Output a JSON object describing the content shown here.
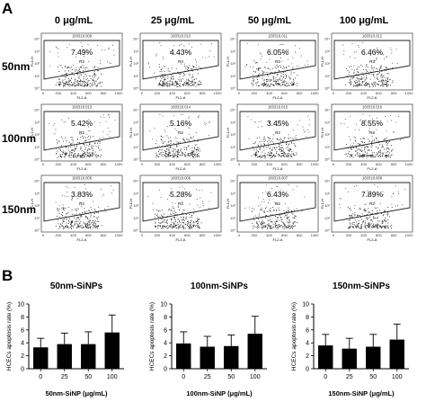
{
  "panel_a": {
    "label": "A",
    "col_headers": [
      "0 μg/mL",
      "25 μg/mL",
      "50 μg/mL",
      "100 μg/mL"
    ],
    "row_headers": [
      "50nm",
      "100nm",
      "150nm"
    ],
    "y_axis_label": "FL1-H",
    "x_axis_label": "FL2-A",
    "x_ticks": [
      "0",
      "200",
      "400",
      "600",
      "800",
      "1000"
    ],
    "y_ticks": [
      "10⁰",
      "10¹",
      "10²",
      "10³",
      "10⁴"
    ],
    "plots": [
      [
        {
          "sample_id": "160318.009",
          "percent": "7.49%",
          "gate": "R3"
        },
        {
          "sample_id": "160318.010",
          "percent": "4.43%",
          "gate": "R3"
        },
        {
          "sample_id": "160318.011",
          "percent": "6.05%",
          "gate": "R3"
        },
        {
          "sample_id": "160318.012",
          "percent": "6.46%",
          "gate": "R3"
        }
      ],
      [
        {
          "sample_id": "160318.013",
          "percent": "5.42%",
          "gate": "R2"
        },
        {
          "sample_id": "160318.014",
          "percent": "5.16%",
          "gate": "R2"
        },
        {
          "sample_id": "160318.015",
          "percent": "3.45%",
          "gate": "R2"
        },
        {
          "sample_id": "160318.016",
          "percent": "8.55%",
          "gate": "R4"
        }
      ],
      [
        {
          "sample_id": "160318.005",
          "percent": "3.83%",
          "gate": "R2"
        },
        {
          "sample_id": "160318.006",
          "percent": "5.28%",
          "gate": "R2"
        },
        {
          "sample_id": "160318.007",
          "percent": "6.43%",
          "gate": "R2"
        },
        {
          "sample_id": "160318.008",
          "percent": "7.89%",
          "gate": "R2"
        }
      ]
    ]
  },
  "panel_b": {
    "label": "B",
    "ylabel": "HCECs apoptosis rate (%)"
  },
  "chart_data": [
    {
      "type": "bar",
      "title": "50nm-SiNPs",
      "xlabel": "50nm-SiNP (μg/mL)",
      "ylabel": "HCECs apoptosis rate (%)",
      "categories": [
        "0",
        "25",
        "50",
        "100"
      ],
      "values": [
        3.3,
        3.8,
        3.8,
        5.6
      ],
      "errors": [
        1.4,
        1.7,
        1.9,
        2.7
      ],
      "ylim": [
        0,
        10
      ],
      "yticks": [
        0,
        2,
        4,
        6,
        8,
        10
      ]
    },
    {
      "type": "bar",
      "title": "100nm-SiNPs",
      "xlabel": "100nm-SiNP (μg/mL)",
      "ylabel": "HCECs apoptosis rate (%)",
      "categories": [
        "0",
        "25",
        "50",
        "100"
      ],
      "values": [
        3.9,
        3.4,
        3.5,
        5.4
      ],
      "errors": [
        1.8,
        1.6,
        1.7,
        2.7
      ],
      "ylim": [
        0,
        10
      ],
      "yticks": [
        0,
        2,
        4,
        6,
        8,
        10
      ]
    },
    {
      "type": "bar",
      "title": "150nm-SiNPs",
      "xlabel": "150nm-SiNP (μg/mL)",
      "ylabel": "HCECs apoptosis rate (%)",
      "categories": [
        "0",
        "25",
        "50",
        "100"
      ],
      "values": [
        3.6,
        3.1,
        3.4,
        4.5
      ],
      "errors": [
        1.7,
        1.6,
        1.9,
        2.4
      ],
      "ylim": [
        0,
        10
      ],
      "yticks": [
        0,
        2,
        4,
        6,
        8,
        10
      ]
    }
  ]
}
